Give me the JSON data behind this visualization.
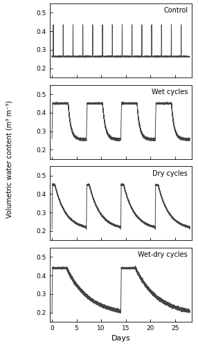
{
  "ylabel": "Volumetric water content (m³ m⁻³)",
  "xlabel": "Days",
  "xlim": [
    -0.5,
    28.5
  ],
  "ylim": [
    0.15,
    0.55
  ],
  "yticks": [
    0.2,
    0.3,
    0.4,
    0.5
  ],
  "xticks": [
    0,
    5,
    10,
    15,
    20,
    25
  ],
  "subplot_labels": [
    "Control",
    "Wet cycles",
    "Dry cycles",
    "Wet-dry cycles"
  ],
  "line_color": "#444444",
  "line_width": 0.7,
  "bg_color": "#ffffff"
}
